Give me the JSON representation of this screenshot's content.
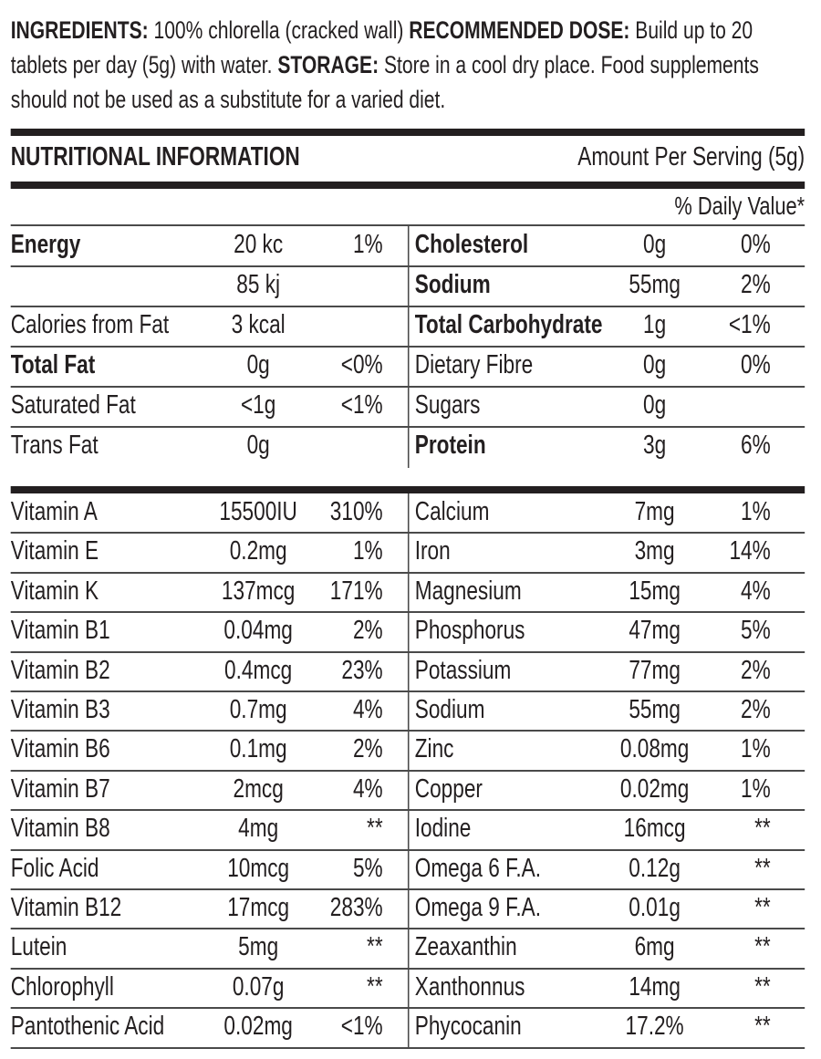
{
  "intro": {
    "ingredients_label": "INGREDIENTS:",
    "ingredients_text": " 100% chlorella (cracked wall) ",
    "dose_label": "RECOMMENDED DOSE:",
    "dose_text": " Build up to 20 tablets per day (5g) with water. ",
    "storage_label": "STORAGE:",
    "storage_text": " Store in a cool dry place. Food supplements should not be used as a substitute for a varied diet."
  },
  "header": {
    "title": "NUTRITIONAL INFORMATION",
    "serving": "Amount Per Serving (5g)",
    "daily_value": "% Daily Value*"
  },
  "macros": [
    {
      "l": {
        "name": "Energy",
        "amount": "20 kc",
        "pct": "1%",
        "bold": true
      },
      "r": {
        "name": "Cholesterol",
        "amount": "0g",
        "pct": "0%",
        "bold": true
      }
    },
    {
      "l": {
        "name": "",
        "amount": "85 kj",
        "pct": ""
      },
      "r": {
        "name": "Sodium",
        "amount": "55mg",
        "pct": "2%",
        "bold": true
      }
    },
    {
      "l": {
        "name": "Calories from Fat",
        "amount": "3 kcal",
        "pct": ""
      },
      "r": {
        "name": "Total Carbohydrate",
        "amount": "1g",
        "pct": "<1%",
        "bold": true
      }
    },
    {
      "l": {
        "name": "Total Fat",
        "amount": "0g",
        "pct": "<0%",
        "bold": true
      },
      "r": {
        "name": "Dietary Fibre",
        "amount": "0g",
        "pct": "0%"
      }
    },
    {
      "l": {
        "name": "Saturated Fat",
        "amount": "<1g",
        "pct": "<1%"
      },
      "r": {
        "name": "Sugars",
        "amount": "0g",
        "pct": ""
      }
    },
    {
      "l": {
        "name": "Trans Fat",
        "amount": "0g",
        "pct": ""
      },
      "r": {
        "name": "Protein",
        "amount": "3g",
        "pct": "6%",
        "bold": true
      }
    }
  ],
  "micros": [
    {
      "l": {
        "name": "Vitamin A",
        "amount": "15500IU",
        "pct": "310%"
      },
      "r": {
        "name": "Calcium",
        "amount": "7mg",
        "pct": "1%"
      }
    },
    {
      "l": {
        "name": "Vitamin E",
        "amount": "0.2mg",
        "pct": "1%"
      },
      "r": {
        "name": "Iron",
        "amount": "3mg",
        "pct": "14%"
      }
    },
    {
      "l": {
        "name": "Vitamin K",
        "amount": "137mcg",
        "pct": "171%"
      },
      "r": {
        "name": "Magnesium",
        "amount": "15mg",
        "pct": "4%"
      }
    },
    {
      "l": {
        "name": "Vitamin B1",
        "amount": "0.04mg",
        "pct": "2%"
      },
      "r": {
        "name": "Phosphorus",
        "amount": "47mg",
        "pct": "5%"
      }
    },
    {
      "l": {
        "name": "Vitamin B2",
        "amount": "0.4mcg",
        "pct": "23%"
      },
      "r": {
        "name": "Potassium",
        "amount": "77mg",
        "pct": "2%"
      }
    },
    {
      "l": {
        "name": "Vitamin B3",
        "amount": "0.7mg",
        "pct": "4%"
      },
      "r": {
        "name": "Sodium",
        "amount": "55mg",
        "pct": "2%"
      }
    },
    {
      "l": {
        "name": "Vitamin B6",
        "amount": "0.1mg",
        "pct": "2%"
      },
      "r": {
        "name": "Zinc",
        "amount": "0.08mg",
        "pct": "1%"
      }
    },
    {
      "l": {
        "name": "Vitamin B7",
        "amount": "2mcg",
        "pct": "4%"
      },
      "r": {
        "name": "Copper",
        "amount": "0.02mg",
        "pct": "1%"
      }
    },
    {
      "l": {
        "name": "Vitamin B8",
        "amount": "4mg",
        "pct": "**"
      },
      "r": {
        "name": "Iodine",
        "amount": "16mcg",
        "pct": "**"
      }
    },
    {
      "l": {
        "name": "Folic Acid",
        "amount": "10mcg",
        "pct": "5%"
      },
      "r": {
        "name": "Omega 6 F.A.",
        "amount": "0.12g",
        "pct": "**"
      }
    },
    {
      "l": {
        "name": "Vitamin B12",
        "amount": "17mcg",
        "pct": "283%"
      },
      "r": {
        "name": "Omega 9 F.A.",
        "amount": "0.01g",
        "pct": "**"
      }
    },
    {
      "l": {
        "name": "Lutein",
        "amount": "5mg",
        "pct": "**"
      },
      "r": {
        "name": "Zeaxanthin",
        "amount": "6mg",
        "pct": "**"
      }
    },
    {
      "l": {
        "name": "Chlorophyll",
        "amount": "0.07g",
        "pct": "**"
      },
      "r": {
        "name": "Xanthonnus",
        "amount": "14mg",
        "pct": "**"
      }
    },
    {
      "l": {
        "name": "Pantothenic Acid",
        "amount": "0.02mg",
        "pct": "<1%"
      },
      "r": {
        "name": "Phycocanin",
        "amount": "17.2%",
        "pct": "**"
      }
    }
  ]
}
